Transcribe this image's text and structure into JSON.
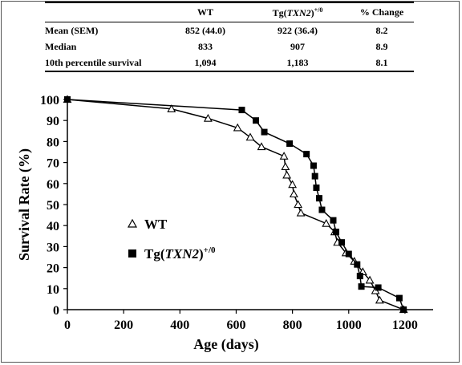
{
  "table": {
    "headers": [
      {
        "text": "",
        "italic": "",
        "sup": ""
      },
      {
        "text": "WT",
        "italic": "",
        "sup": ""
      },
      {
        "text": "Tg(",
        "italic": "TXN2",
        "after": ")",
        "sup": "+/0"
      },
      {
        "text": "% Change",
        "italic": "",
        "sup": ""
      }
    ],
    "rows": [
      [
        "Mean (SEM)",
        "852 (44.0)",
        "922 (36.4)",
        "8.2"
      ],
      [
        "Median",
        "833",
        "907",
        "8.9"
      ],
      [
        "10th percentile survival",
        "1,094",
        "1,183",
        "8.1"
      ]
    ]
  },
  "chart_data": {
    "type": "line",
    "xlabel": "Age (days)",
    "ylabel": "Survival Rate (%)",
    "xlim": [
      0,
      1300
    ],
    "ylim": [
      0,
      100
    ],
    "xticks": [
      0,
      200,
      400,
      600,
      800,
      1000,
      1200
    ],
    "yticks": [
      0,
      10,
      20,
      30,
      40,
      50,
      60,
      70,
      80,
      90,
      100
    ],
    "grid": false,
    "legend_placement": "center-left",
    "series": [
      {
        "name": "WT",
        "name_italic": "",
        "name_after": "",
        "name_sup": "",
        "marker": "triangle-open",
        "x": [
          0,
          370,
          500,
          605,
          650,
          690,
          770,
          775,
          780,
          800,
          805,
          820,
          830,
          920,
          950,
          960,
          990,
          1020,
          1050,
          1075,
          1095,
          1110,
          1195
        ],
        "y": [
          100,
          95.5,
          91,
          86.5,
          82,
          77.5,
          73,
          68,
          64,
          59.5,
          55,
          50,
          46,
          41,
          37,
          32,
          27,
          23,
          18,
          14,
          9,
          4.5,
          0
        ]
      },
      {
        "name": "Tg(",
        "name_italic": "TXN2",
        "name_after": ")",
        "name_sup": "+/0",
        "marker": "square-filled",
        "x": [
          0,
          620,
          670,
          700,
          790,
          850,
          875,
          880,
          885,
          895,
          905,
          945,
          955,
          975,
          1000,
          1030,
          1040,
          1045,
          1105,
          1180,
          1195
        ],
        "y": [
          100,
          95,
          90,
          84.5,
          79,
          74,
          68.5,
          63.5,
          58,
          53,
          47.5,
          42.5,
          37,
          32,
          26.5,
          21.5,
          16,
          11,
          10.5,
          5.5,
          0
        ]
      }
    ]
  }
}
